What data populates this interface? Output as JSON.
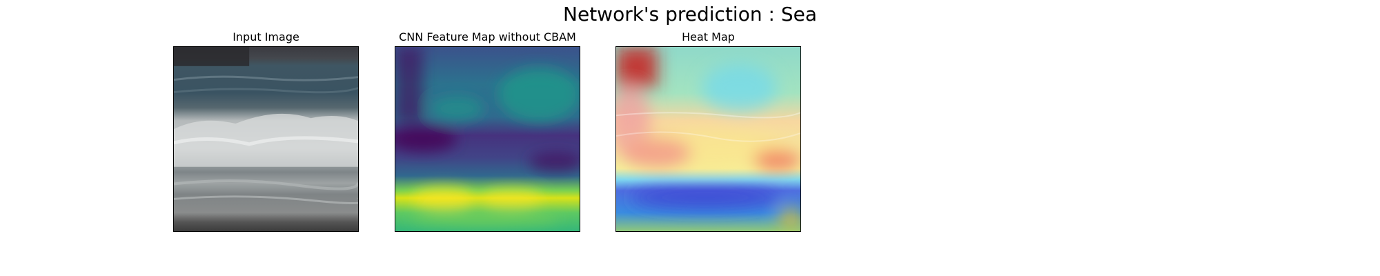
{
  "figure": {
    "suptitle": "Network's prediction : Sea"
  },
  "panels": [
    {
      "title": "Input Image"
    },
    {
      "title": "CNN Feature Map without CBAM"
    },
    {
      "title": "Heat Map"
    }
  ],
  "colors": {
    "background": "#ffffff",
    "frame": "#000000"
  }
}
